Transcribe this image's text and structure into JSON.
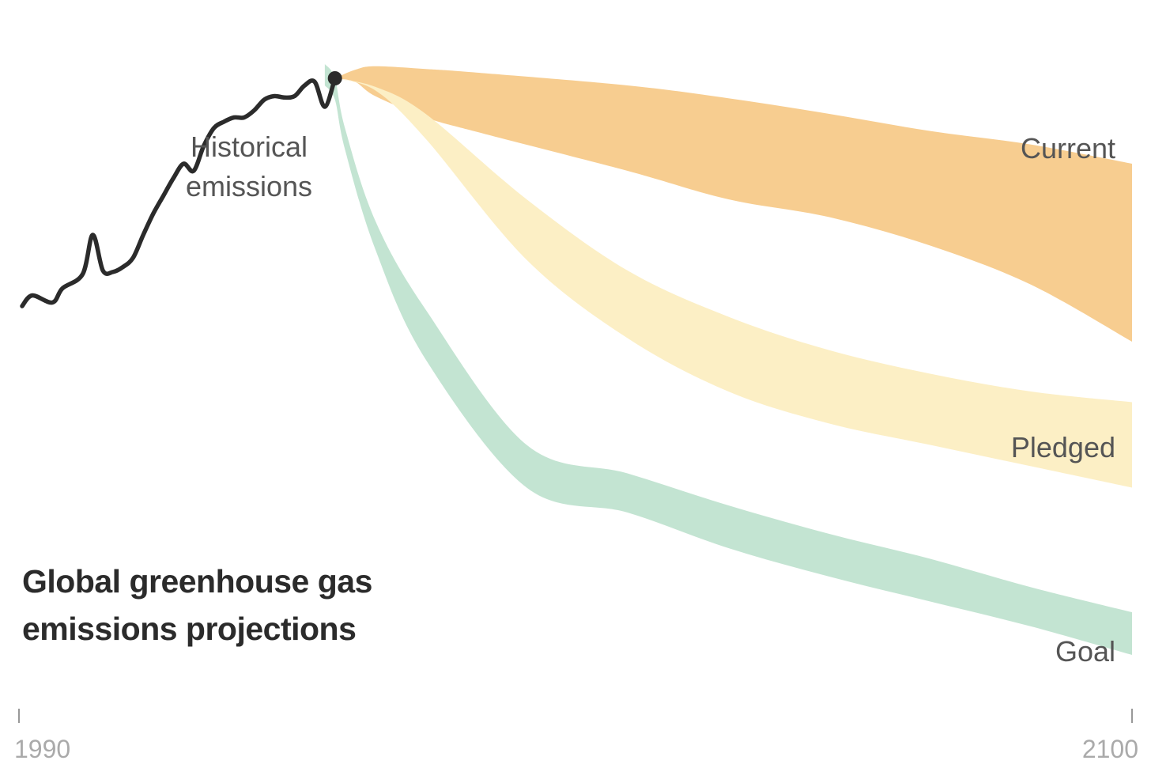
{
  "chart_data": {
    "type": "area",
    "title": "Global greenhouse gas emissions projections",
    "x_axis": {
      "range": [
        1990,
        2100
      ],
      "tick_labels": [
        "1990",
        "2100"
      ]
    },
    "y_axis": {
      "range": [
        0,
        100
      ],
      "visible": false
    },
    "grid": false,
    "historical": {
      "label": "Historical emissions",
      "color": "#2b2b2b",
      "x": [
        1990,
        1991,
        1993,
        1994,
        1996,
        1997,
        1998,
        1999,
        2000,
        2001,
        2002,
        2003,
        2004,
        2005,
        2006,
        2007,
        2008,
        2009,
        2010,
        2011,
        2012,
        2013,
        2014,
        2015,
        2016,
        2017,
        2018,
        2019,
        2020,
        2021
      ],
      "values": [
        57.0,
        58.5,
        57.5,
        59.5,
        61.5,
        67.0,
        62.0,
        61.8,
        62.5,
        63.8,
        67.0,
        70.0,
        72.5,
        75.0,
        77.0,
        76.0,
        79.5,
        82.0,
        82.9,
        83.5,
        83.5,
        84.5,
        86.0,
        86.5,
        86.3,
        86.5,
        88.0,
        88.5,
        85.0,
        89.0
      ]
    },
    "series": [
      {
        "name": "Current",
        "color": "#f7cd90",
        "x": [
          2021,
          2023,
          2025,
          2030,
          2035,
          2050,
          2060,
          2070,
          2080,
          2090,
          2100
        ],
        "upper": [
          89.0,
          90.2,
          90.7,
          90.3,
          89.8,
          88.0,
          86.2,
          84.0,
          81.6,
          79.7,
          77.0
        ],
        "lower": [
          89.0,
          88.5,
          86.5,
          83.5,
          81.5,
          76.0,
          72.0,
          69.5,
          65.5,
          60.0,
          52.0
        ]
      },
      {
        "name": "Pledged",
        "color": "#fcefc5",
        "x": [
          2021,
          2025,
          2030,
          2040,
          2050,
          2060,
          2070,
          2080,
          2090,
          2100
        ],
        "upper": [
          89.0,
          87.8,
          84.0,
          72.0,
          62.0,
          55.5,
          50.8,
          47.5,
          45.0,
          43.5
        ],
        "lower": [
          89.0,
          87.3,
          80.5,
          63.5,
          52.5,
          45.0,
          40.5,
          37.5,
          34.5,
          31.5
        ]
      },
      {
        "name": "Goal",
        "color": "#c3e4d2",
        "x": [
          2020,
          2021,
          2022,
          2025,
          2030,
          2040,
          2050,
          2060,
          2070,
          2080,
          2090,
          2100
        ],
        "upper": [
          91.0,
          89.0,
          82.0,
          69.0,
          56.5,
          37.5,
          33.5,
          29.0,
          25.0,
          21.5,
          17.5,
          14.0
        ],
        "lower": [
          88.0,
          86.0,
          79.0,
          65.0,
          49.5,
          31.5,
          28.0,
          23.0,
          19.0,
          15.5,
          12.0,
          8.0
        ]
      }
    ]
  }
}
